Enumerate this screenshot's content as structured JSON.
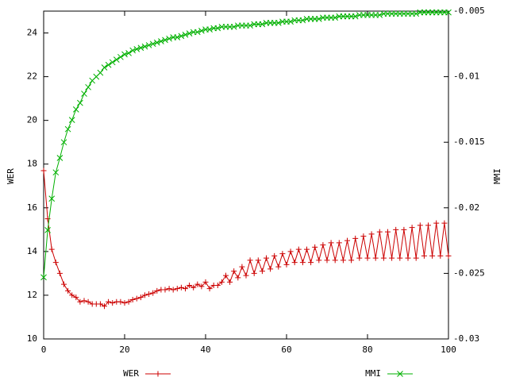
{
  "chart_data": {
    "type": "line",
    "x": [
      0,
      1,
      2,
      3,
      4,
      5,
      6,
      7,
      8,
      9,
      10,
      11,
      12,
      13,
      14,
      15,
      16,
      17,
      18,
      19,
      20,
      21,
      22,
      23,
      24,
      25,
      26,
      27,
      28,
      29,
      30,
      31,
      32,
      33,
      34,
      35,
      36,
      37,
      38,
      39,
      40,
      41,
      42,
      43,
      44,
      45,
      46,
      47,
      48,
      49,
      50,
      51,
      52,
      53,
      54,
      55,
      56,
      57,
      58,
      59,
      60,
      61,
      62,
      63,
      64,
      65,
      66,
      67,
      68,
      69,
      70,
      71,
      72,
      73,
      74,
      75,
      76,
      77,
      78,
      79,
      80,
      81,
      82,
      83,
      84,
      85,
      86,
      87,
      88,
      89,
      90,
      91,
      92,
      93,
      94,
      95,
      96,
      97,
      98,
      99,
      100
    ],
    "y_label": "WER",
    "y2_label": "MMI",
    "xlim": [
      0,
      100
    ],
    "xticks": [
      0,
      20,
      40,
      60,
      80,
      100
    ],
    "ylim": [
      10,
      25
    ],
    "yticks": [
      10,
      12,
      14,
      16,
      18,
      20,
      22,
      24
    ],
    "y2lim": [
      -0.03,
      -0.005
    ],
    "y2ticks": [
      -0.03,
      -0.025,
      -0.02,
      -0.015,
      -0.01,
      -0.005
    ],
    "series": [
      {
        "name": "WER",
        "color": "#cc0000",
        "marker": "plus",
        "values": [
          17.7,
          15.5,
          14.1,
          13.5,
          13.0,
          12.5,
          12.2,
          12.0,
          11.9,
          11.7,
          11.75,
          11.7,
          11.6,
          11.6,
          11.6,
          11.5,
          11.7,
          11.65,
          11.7,
          11.7,
          11.65,
          11.7,
          11.8,
          11.85,
          11.9,
          12.0,
          12.05,
          12.1,
          12.2,
          12.25,
          12.25,
          12.3,
          12.25,
          12.3,
          12.35,
          12.3,
          12.45,
          12.35,
          12.5,
          12.4,
          12.6,
          12.3,
          12.45,
          12.45,
          12.6,
          12.9,
          12.6,
          13.1,
          12.8,
          13.3,
          12.9,
          13.6,
          13.0,
          13.6,
          13.1,
          13.7,
          13.2,
          13.8,
          13.3,
          13.9,
          13.4,
          14.0,
          13.5,
          14.1,
          13.5,
          14.1,
          13.5,
          14.2,
          13.6,
          14.3,
          13.6,
          14.4,
          13.6,
          14.4,
          13.6,
          14.5,
          13.6,
          14.6,
          13.7,
          14.7,
          13.7,
          14.8,
          13.7,
          14.9,
          13.7,
          14.9,
          13.7,
          15.0,
          13.7,
          15.0,
          13.7,
          15.1,
          13.7,
          15.2,
          13.8,
          15.2,
          13.8,
          15.3,
          13.8,
          15.3,
          13.8
        ]
      },
      {
        "name": "MMI",
        "color": "#00b000",
        "marker": "cross",
        "axis": "y2",
        "values": [
          -0.0253,
          -0.0217,
          -0.0193,
          -0.0173,
          -0.0162,
          -0.015,
          -0.014,
          -0.0133,
          -0.0125,
          -0.012,
          -0.0113,
          -0.0108,
          -0.0103,
          -0.01,
          -0.0097,
          -0.0093,
          -0.0091,
          -0.0089,
          -0.0087,
          -0.0085,
          -0.0083,
          -0.0082,
          -0.008,
          -0.0079,
          -0.0078,
          -0.0077,
          -0.0076,
          -0.0075,
          -0.0074,
          -0.0073,
          -0.0072,
          -0.0071,
          -0.007,
          -0.007,
          -0.0069,
          -0.0068,
          -0.0067,
          -0.0066,
          -0.0066,
          -0.0065,
          -0.0064,
          -0.0064,
          -0.0063,
          -0.0063,
          -0.0062,
          -0.0062,
          -0.0062,
          -0.0062,
          -0.0061,
          -0.0061,
          -0.0061,
          -0.0061,
          -0.006,
          -0.006,
          -0.006,
          -0.0059,
          -0.0059,
          -0.0059,
          -0.0059,
          -0.0058,
          -0.0058,
          -0.0058,
          -0.0057,
          -0.0057,
          -0.0057,
          -0.0056,
          -0.0056,
          -0.0056,
          -0.0056,
          -0.0055,
          -0.0055,
          -0.0055,
          -0.0055,
          -0.0054,
          -0.0054,
          -0.0054,
          -0.0054,
          -0.0054,
          -0.0053,
          -0.0053,
          -0.0053,
          -0.0053,
          -0.0053,
          -0.0053,
          -0.0052,
          -0.0052,
          -0.0052,
          -0.0052,
          -0.0052,
          -0.0052,
          -0.0052,
          -0.0052,
          -0.0052,
          -0.0051,
          -0.0051,
          -0.0051,
          -0.0051,
          -0.0051,
          -0.0051,
          -0.0051,
          -0.0051
        ]
      }
    ]
  }
}
